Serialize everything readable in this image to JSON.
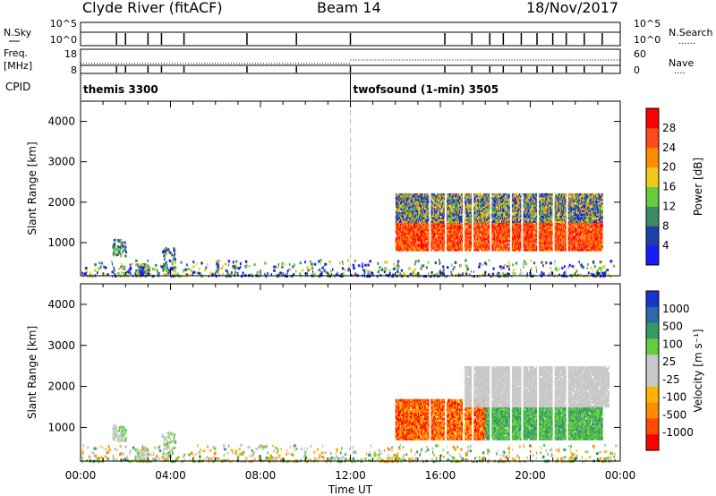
{
  "header": {
    "station": "Clyde River (fitACF)",
    "beam": "Beam 14",
    "date": "18/Nov/2017"
  },
  "colors": {
    "power_scale": [
      "#1a1aff",
      "#1f3fa8",
      "#3d8a66",
      "#66cc3d",
      "#f2c81a",
      "#ff8c00",
      "#ff4a1a",
      "#ff0000"
    ],
    "velocity_scale": [
      "#ff0000",
      "#ff4a00",
      "#ff8c00",
      "#ffb300",
      "#c8c8c8",
      "#c8c8c8",
      "#66cc3d",
      "#339966",
      "#2d6aa8",
      "#1a33cc"
    ],
    "dashed_line": "#bdbdbd"
  },
  "chart_data": [
    {
      "type": "line",
      "name": "sky-search-noise",
      "left_labels": [
        "N.Sky",
        ""
      ],
      "right_labels": [
        "N.Search",
        "......"
      ],
      "left_ticks": [
        "10^5",
        "10^0"
      ],
      "right_ticks": [
        "10^5",
        "10^0"
      ],
      "ylim": [
        0,
        5
      ],
      "series": [
        {
          "values_description": "flat near 10^0 with periodic spikes"
        }
      ]
    },
    {
      "type": "line",
      "name": "freq-nave",
      "left_labels": [
        "Freq.",
        "[MHz]"
      ],
      "right_labels": [
        "Nave",
        "...."
      ],
      "left_ticks": [
        "18",
        "8"
      ],
      "right_ticks": [
        "60",
        "0"
      ],
      "ylim": [
        8,
        18
      ],
      "x_change_hour": 12
    },
    {
      "type": "table",
      "name": "cpid",
      "label": "CPID",
      "segments": [
        {
          "start_hour": 0,
          "end_hour": 12,
          "text": "themis 3300"
        },
        {
          "start_hour": 12,
          "end_hour": 24,
          "text": "twofsound (1-min) 3505"
        }
      ]
    },
    {
      "type": "heatmap",
      "name": "power",
      "ylabel": "Slant Range [km]",
      "yticks": [
        "1000",
        "2000",
        "3000",
        "4000"
      ],
      "ylim": [
        180,
        4500
      ],
      "xlim": [
        0,
        24
      ],
      "colorbar": {
        "label": "Power [dB]",
        "ticks": [
          "4",
          "8",
          "12",
          "16",
          "20",
          "24",
          "28"
        ],
        "range": [
          0,
          32
        ]
      },
      "features": [
        {
          "start_hour": 0,
          "end_hour": 13.5,
          "range_low_km": 200,
          "range_high_km": 600,
          "level": "weak-mixed"
        },
        {
          "start_hour": 14,
          "end_hour": 23.2,
          "range_low_km": 800,
          "range_high_km": 1500,
          "level": "strong"
        },
        {
          "start_hour": 14,
          "end_hour": 23.2,
          "range_low_km": 1500,
          "range_high_km": 2200,
          "level": "moderate"
        }
      ]
    },
    {
      "type": "heatmap",
      "name": "velocity",
      "ylabel": "Slant Range [km]",
      "yticks": [
        "1000",
        "2000",
        "3000",
        "4000"
      ],
      "ylim": [
        180,
        4500
      ],
      "xlim": [
        0,
        24
      ],
      "xticks": [
        "00:00",
        "04:00",
        "08:00",
        "12:00",
        "16:00",
        "20:00",
        "00:00"
      ],
      "xlabel": "Time UT",
      "colorbar": {
        "label": "Velocity [m s⁻¹]",
        "ticks": [
          "1000",
          "500",
          "100",
          "25",
          "-25",
          "-100",
          "-500",
          "-1000"
        ]
      },
      "features": [
        {
          "start_hour": 14,
          "end_hour": 18,
          "range_low_km": 700,
          "range_high_km": 1700,
          "level": "negative"
        },
        {
          "start_hour": 18,
          "end_hour": 23.2,
          "range_low_km": 700,
          "range_high_km": 1500,
          "level": "positive"
        },
        {
          "start_hour": 17,
          "end_hour": 23.5,
          "range_low_km": 1500,
          "range_high_km": 2500,
          "level": "near-zero"
        }
      ]
    }
  ]
}
